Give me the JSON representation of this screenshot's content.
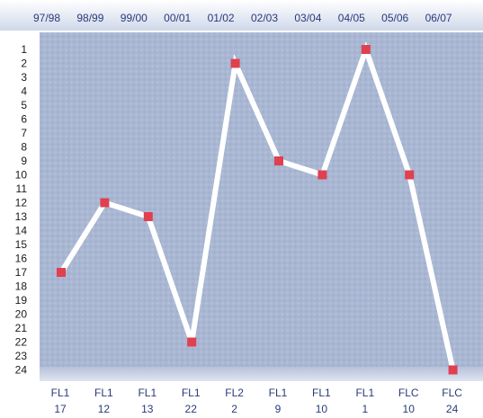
{
  "chart_data": {
    "type": "line",
    "title": "",
    "xlabel": "",
    "ylabel": "",
    "categories": [
      "97/98",
      "98/99",
      "99/00",
      "00/01",
      "01/02",
      "02/03",
      "03/04",
      "04/05",
      "05/06",
      "06/07"
    ],
    "series": [
      {
        "values": [
          17,
          12,
          13,
          22,
          2,
          9,
          10,
          1,
          10,
          24
        ]
      }
    ],
    "leagues": [
      "FL1",
      "FL1",
      "FL1",
      "FL1",
      "FL2",
      "FL1",
      "FL1",
      "FL1",
      "FLC",
      "FLC"
    ],
    "positions": [
      "17",
      "12",
      "13",
      "22",
      "2",
      "9",
      "10",
      "1",
      "10",
      "24"
    ],
    "y_ticks": [
      "1",
      "2",
      "3",
      "4",
      "5",
      "6",
      "7",
      "8",
      "9",
      "10",
      "11",
      "12",
      "13",
      "14",
      "15",
      "16",
      "17",
      "18",
      "19",
      "20",
      "21",
      "22",
      "23",
      "24"
    ],
    "ylim": [
      1,
      24
    ],
    "y_inverted": true,
    "grid": false,
    "colors": {
      "plot_bg": "#a9b7d3",
      "line": "#ffffff",
      "marker": "#e0404f",
      "header_band": "#dfe5f1",
      "label_text": "#2a3a7a"
    }
  }
}
